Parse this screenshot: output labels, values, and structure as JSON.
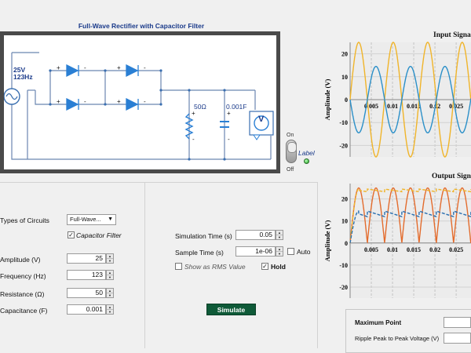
{
  "circuit": {
    "title": "Full-Wave Rectifier with Capacitor Filter",
    "source_voltage": "25V",
    "source_frequency": "123Hz",
    "resistor_label": "50Ω",
    "capacitor_label": "0.001F",
    "meter_label": "V",
    "diode_plus": "+",
    "diode_minus": "-",
    "load_plus": "+",
    "load_minus": "-"
  },
  "switch": {
    "on_label": "On",
    "off_label": "Off",
    "led_label": "Label"
  },
  "controls": {
    "circuit_type_label": "Types of Circuits",
    "circuit_type_value": "Full-Wave...",
    "capacitor_filter_label": "Capacitor Filter",
    "capacitor_filter_checked": true,
    "amplitude_label": "Amplitude (V)",
    "amplitude_value": "25",
    "frequency_label": "Frequency (Hz)",
    "frequency_value": "123",
    "resistance_label": "Resistance (Ω)",
    "resistance_value": "50",
    "capacitance_label": "Capacitance (F)",
    "capacitance_value": "0.001",
    "sim_time_label": "Simulation Time (s)",
    "sim_time_value": "0.05",
    "sample_time_label": "Sample Time (s)",
    "sample_time_value": "1e-06",
    "auto_label": "Auto",
    "auto_checked": false,
    "rms_label": "Show as RMS Value",
    "rms_checked": false,
    "hold_label": "Hold",
    "hold_checked": true,
    "simulate_label": "Simulate"
  },
  "results": {
    "max_point_label": "Maximum Point",
    "ripple_label": "Ripple Peak to Peak Voltage (V)"
  },
  "chart_data": [
    {
      "type": "line",
      "title": "Input Signa",
      "ylabel": "Amplitude (V)",
      "xlabel": "",
      "x_ticks": [
        "0.005",
        "0.01",
        "0.015",
        "0.02",
        "0.025"
      ],
      "y_ticks": [
        "20",
        "10",
        "0",
        "-10",
        "-20"
      ],
      "ylim": [
        -25,
        25
      ],
      "xlim": [
        0,
        0.0285
      ],
      "grid": true,
      "series": [
        {
          "color": "#f0b429",
          "amplitude": 25,
          "frequency": 123,
          "phase_deg": 0
        },
        {
          "color": "#2a8fc8",
          "amplitude": 14.5,
          "frequency": 123,
          "phase_deg": 180
        }
      ]
    },
    {
      "type": "line",
      "title": "Output Sign",
      "ylabel": "Amplitude (V)",
      "xlabel": "",
      "x_ticks": [
        "0.005",
        "0.01",
        "0.015",
        "0.02",
        "0.025"
      ],
      "y_ticks": [
        "20",
        "10",
        "0",
        "-10",
        "-20"
      ],
      "ylim": [
        -25,
        27
      ],
      "xlim": [
        0,
        0.0285
      ],
      "grid": true,
      "series": [
        {
          "color": "#e36b2c",
          "kind": "rectified",
          "amplitude": 25,
          "frequency": 123
        },
        {
          "color": "#f0b429",
          "kind": "filtered_dashed",
          "amplitude": 24.5
        },
        {
          "color": "#2a6fb0",
          "kind": "average_dashed",
          "amplitude": 14.5
        }
      ]
    }
  ]
}
